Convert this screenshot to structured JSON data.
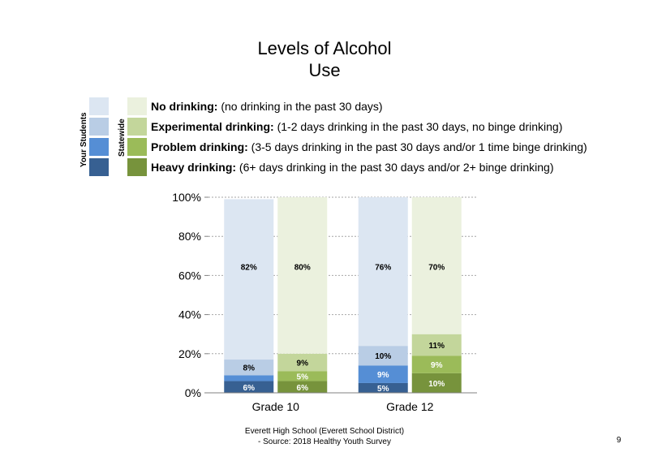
{
  "title_lines": [
    "Levels of Alcohol",
    "Use"
  ],
  "legend": {
    "your_students_label": "Your Students",
    "statewide_label": "Statewide",
    "items": [
      {
        "bold": "No drinking:",
        "desc": " (no drinking in the past 30 days)",
        "your_color": "#dce6f2",
        "state_color": "#ebf1de"
      },
      {
        "bold": "Experimental drinking:",
        "desc": " (1-2 days drinking in the past 30 days, no binge drinking)",
        "your_color": "#b9cde5",
        "state_color": "#c3d69b"
      },
      {
        "bold": "Problem drinking:",
        "desc": " (3-5 days drinking in the past 30 days and/or 1 time binge drinking)",
        "your_color": "#558ed5",
        "state_color": "#9bbb59"
      },
      {
        "bold": "Heavy drinking:",
        "desc": " (6+ days drinking in the past 30 days and/or 2+ binge drinking)",
        "your_color": "#376092",
        "state_color": "#77933c"
      }
    ]
  },
  "chart_data": {
    "type": "bar",
    "stacked": true,
    "categories": [
      "Grade 10",
      "Grade 12"
    ],
    "ylim": [
      0,
      100
    ],
    "yticks": [
      "0%",
      "20%",
      "40%",
      "60%",
      "80%",
      "100%"
    ],
    "grid": true,
    "series": [
      {
        "group": "Your Students",
        "colors": [
          "#376092",
          "#558ed5",
          "#b9cde5",
          "#dce6f2"
        ],
        "values": [
          [
            6,
            3,
            8,
            82
          ],
          [
            5,
            9,
            10,
            76
          ]
        ],
        "labels": [
          [
            "6%",
            "",
            "8%",
            "82%"
          ],
          [
            "5%",
            "9%",
            "10%",
            "76%"
          ]
        ]
      },
      {
        "group": "Statewide",
        "colors": [
          "#77933c",
          "#9bbb59",
          "#c3d69b",
          "#ebf1de"
        ],
        "values": [
          [
            6,
            5,
            9,
            80
          ],
          [
            10,
            9,
            11,
            70
          ]
        ],
        "labels": [
          [
            "6%",
            "5%",
            "9%",
            "80%"
          ],
          [
            "10%",
            "9%",
            "11%",
            "70%"
          ]
        ]
      }
    ]
  },
  "footer": {
    "line1": "Everett High  School (Everett School District)",
    "line2": "- Source: 2018 Healthy  Youth Survey"
  },
  "page_number": "9"
}
